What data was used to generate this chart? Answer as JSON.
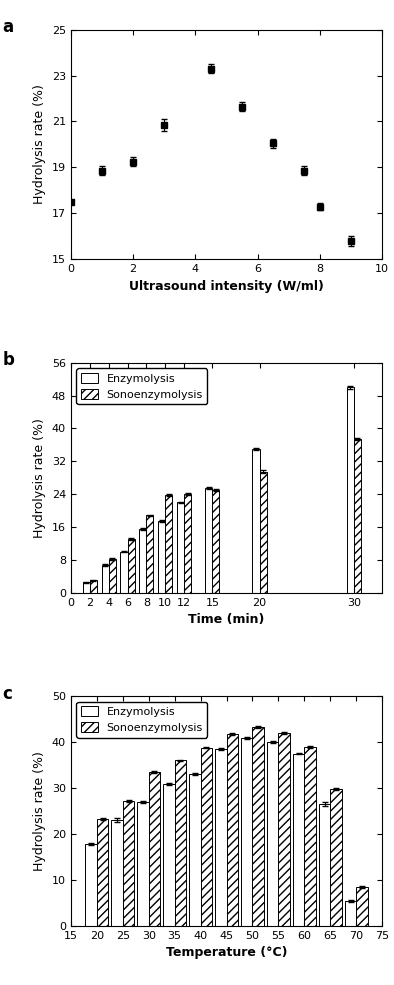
{
  "panel_a": {
    "x": [
      0,
      1,
      2,
      3,
      4.5,
      5.5,
      6.5,
      7.5,
      8.0,
      9.0
    ],
    "y": [
      17.5,
      18.85,
      19.25,
      20.85,
      23.3,
      21.65,
      20.05,
      18.85,
      17.3,
      15.8
    ],
    "yerr": [
      0.1,
      0.2,
      0.2,
      0.25,
      0.2,
      0.2,
      0.2,
      0.2,
      0.15,
      0.2
    ],
    "xlabel": "Ultrasound intensity (W/ml)",
    "ylabel": "Hydrolysis rate (%)",
    "xlim": [
      0,
      10
    ],
    "ylim": [
      15,
      25
    ],
    "yticks": [
      15,
      17,
      19,
      21,
      23,
      25
    ],
    "xticks": [
      0,
      2,
      4,
      6,
      8,
      10
    ],
    "label": "a"
  },
  "panel_b": {
    "times": [
      2,
      4,
      6,
      8,
      10,
      12,
      15,
      20,
      30
    ],
    "enzymolysis": [
      2.5,
      6.8,
      10.0,
      15.5,
      17.5,
      22.0,
      25.5,
      35.0,
      50.0
    ],
    "sonoenzymolysis": [
      3.0,
      8.2,
      13.0,
      18.8,
      23.8,
      24.0,
      25.0,
      29.5,
      37.5
    ],
    "enzymolysis_err": [
      0.15,
      0.2,
      0.2,
      0.2,
      0.2,
      0.2,
      0.3,
      0.3,
      0.3
    ],
    "sonoenzymolysis_err": [
      0.15,
      0.2,
      0.2,
      0.2,
      0.2,
      0.2,
      0.2,
      0.3,
      0.3
    ],
    "xlabel": "Time (min)",
    "ylabel": "Hydrolysis rate (%)",
    "xlim": [
      0,
      33
    ],
    "ylim": [
      0,
      56
    ],
    "yticks": [
      0,
      8,
      16,
      24,
      32,
      40,
      48,
      56
    ],
    "xticks": [
      0,
      2,
      4,
      6,
      8,
      10,
      12,
      15,
      20,
      30
    ],
    "label": "b"
  },
  "panel_c": {
    "temps": [
      20,
      25,
      30,
      35,
      40,
      45,
      50,
      55,
      60,
      65,
      70
    ],
    "enzymolysis": [
      17.8,
      23.0,
      27.0,
      30.8,
      33.0,
      38.5,
      40.8,
      40.0,
      37.5,
      26.5,
      5.5
    ],
    "sonoenzymolysis": [
      23.3,
      27.2,
      33.5,
      36.0,
      38.8,
      41.8,
      43.3,
      42.0,
      39.0,
      29.8,
      8.5
    ],
    "enzymolysis_err": [
      0.2,
      0.5,
      0.2,
      0.2,
      0.2,
      0.2,
      0.2,
      0.2,
      0.2,
      0.5,
      0.2
    ],
    "sonoenzymolysis_err": [
      0.2,
      0.2,
      0.2,
      0.2,
      0.2,
      0.2,
      0.2,
      0.2,
      0.2,
      0.2,
      0.2
    ],
    "xlabel": "Temperature (°C)",
    "ylabel": "Hydrolysis rate (%)",
    "xlim": [
      15,
      75
    ],
    "ylim": [
      0,
      50
    ],
    "yticks": [
      0,
      10,
      20,
      30,
      40,
      50
    ],
    "xticks": [
      15,
      20,
      25,
      30,
      35,
      40,
      45,
      50,
      55,
      60,
      65,
      70,
      75
    ],
    "label": "c"
  },
  "hatch_pattern": "////",
  "enzymolysis_color": "white",
  "sonoenzymolysis_color": "white",
  "bar_edgecolor": "black",
  "marker": "s",
  "markersize": 5,
  "markercolor": "black",
  "capsize": 2,
  "ecolor": "black",
  "elinewidth": 0.8
}
